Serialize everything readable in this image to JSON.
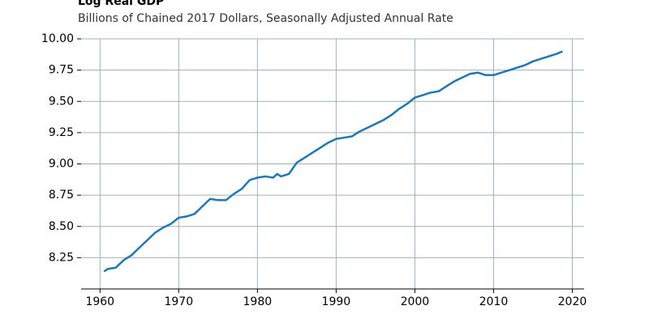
{
  "chart_data": {
    "type": "line",
    "title": "Log Real GDP",
    "subtitle": "Billions of Chained 2017 Dollars, Seasonally Adjusted Annual Rate",
    "x": [
      1960.5,
      1961,
      1962,
      1963,
      1964,
      1965,
      1966,
      1967,
      1968,
      1969,
      1970,
      1971,
      1972,
      1973,
      1974,
      1975,
      1976,
      1977,
      1978,
      1979,
      1980,
      1981,
      1982,
      1982.5,
      1983,
      1984,
      1985,
      1986,
      1987,
      1988,
      1989,
      1990,
      1991,
      1992,
      1993,
      1994,
      1995,
      1996,
      1997,
      1998,
      1999,
      2000,
      2001,
      2002,
      2003,
      2004,
      2005,
      2006,
      2007,
      2008,
      2009,
      2010,
      2011,
      2012,
      2013,
      2014,
      2015,
      2016,
      2017,
      2018,
      2018.75
    ],
    "series": [
      {
        "color": "#1f77b4",
        "values": [
          8.14,
          8.16,
          8.17,
          8.23,
          8.27,
          8.33,
          8.39,
          8.45,
          8.49,
          8.52,
          8.57,
          8.58,
          8.6,
          8.66,
          8.72,
          8.71,
          8.71,
          8.76,
          8.8,
          8.87,
          8.89,
          8.9,
          8.89,
          8.92,
          8.9,
          8.92,
          9.01,
          9.05,
          9.09,
          9.13,
          9.17,
          9.2,
          9.21,
          9.22,
          9.26,
          9.29,
          9.32,
          9.35,
          9.39,
          9.44,
          9.48,
          9.53,
          9.55,
          9.57,
          9.58,
          9.62,
          9.66,
          9.69,
          9.72,
          9.73,
          9.71,
          9.71,
          9.73,
          9.75,
          9.77,
          9.79,
          9.82,
          9.84,
          9.86,
          9.88,
          9.9
        ]
      }
    ],
    "xlim": [
      1957.6,
      2021.5
    ],
    "xticks": [
      1960,
      1970,
      1980,
      1990,
      2000,
      2010,
      2020
    ],
    "ylim": [
      8.0,
      10.0
    ],
    "yticks": [
      {
        "value": 8.25,
        "label": "8.25"
      },
      {
        "value": 8.5,
        "label": "8.50"
      },
      {
        "value": 8.75,
        "label": "8.75"
      },
      {
        "value": 9,
        "label": "9.00"
      },
      {
        "value": 9.25,
        "label": "9.25"
      },
      {
        "value": 9.5,
        "label": "9.50"
      },
      {
        "value": 9.75,
        "label": "9.75"
      },
      {
        "value": 10,
        "label": "10.00"
      }
    ],
    "grid": true
  }
}
